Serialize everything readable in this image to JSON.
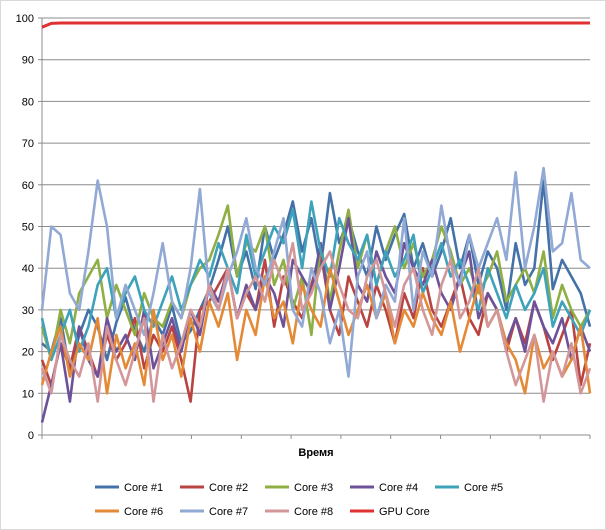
{
  "chart_data": {
    "type": "line",
    "xlabel": "Время",
    "ylabel": "",
    "ylim": [
      0,
      100
    ],
    "yticks": [
      0,
      10,
      20,
      30,
      40,
      50,
      60,
      70,
      80,
      90,
      100
    ],
    "grid": true,
    "legend_position": "bottom",
    "x": [
      1,
      2,
      3,
      4,
      5,
      6,
      7,
      8,
      9,
      10,
      11,
      12,
      13,
      14,
      15,
      16,
      17,
      18,
      19,
      20,
      21,
      22,
      23,
      24,
      25,
      26,
      27,
      28,
      29,
      30,
      31,
      32,
      33,
      34,
      35,
      36,
      37,
      38,
      39,
      40,
      41,
      42,
      43,
      44,
      45,
      46,
      47,
      48,
      49,
      50,
      51,
      52,
      53,
      54,
      55,
      56,
      57,
      58,
      59,
      60
    ],
    "series": [
      {
        "name": "Core #1",
        "color": "#4472a8",
        "values": [
          22,
          20,
          28,
          15,
          24,
          30,
          26,
          18,
          27,
          33,
          25,
          20,
          28,
          24,
          31,
          22,
          25,
          30,
          35,
          42,
          50,
          38,
          44,
          35,
          50,
          42,
          48,
          56,
          44,
          52,
          40,
          58,
          46,
          52,
          44,
          38,
          50,
          42,
          48,
          53,
          40,
          46,
          38,
          44,
          52,
          40,
          48,
          36,
          44,
          40,
          30,
          46,
          36,
          40,
          61,
          35,
          42,
          38,
          34,
          26
        ]
      },
      {
        "name": "Core #2",
        "color": "#b84341",
        "values": [
          18,
          12,
          22,
          16,
          26,
          20,
          14,
          24,
          18,
          22,
          28,
          16,
          24,
          20,
          26,
          18,
          8,
          30,
          32,
          36,
          40,
          28,
          34,
          30,
          42,
          26,
          38,
          32,
          28,
          36,
          44,
          30,
          24,
          38,
          32,
          26,
          36,
          30,
          22,
          34,
          28,
          40,
          30,
          26,
          32,
          38,
          28,
          24,
          34,
          30,
          20,
          28,
          22,
          32,
          26,
          18,
          24,
          30,
          12,
          22
        ]
      },
      {
        "name": "Core #3",
        "color": "#8faf45",
        "values": [
          26,
          18,
          30,
          22,
          34,
          38,
          42,
          28,
          36,
          30,
          24,
          34,
          28,
          26,
          32,
          28,
          36,
          40,
          42,
          48,
          55,
          38,
          46,
          44,
          50,
          36,
          42,
          30,
          38,
          24,
          46,
          32,
          44,
          54,
          40,
          48,
          36,
          44,
          50,
          40,
          46,
          38,
          42,
          50,
          44,
          36,
          40,
          34,
          38,
          44,
          32,
          36,
          40,
          34,
          44,
          28,
          36,
          30,
          26,
          30
        ]
      },
      {
        "name": "Core #4",
        "color": "#6e5299",
        "values": [
          3,
          12,
          22,
          8,
          26,
          18,
          14,
          28,
          20,
          24,
          18,
          30,
          16,
          22,
          28,
          20,
          30,
          24,
          36,
          32,
          40,
          28,
          36,
          30,
          38,
          34,
          26,
          42,
          38,
          34,
          46,
          30,
          40,
          52,
          36,
          32,
          44,
          38,
          34,
          46,
          40,
          36,
          42,
          34,
          30,
          38,
          44,
          28,
          34,
          30,
          22,
          28,
          20,
          32,
          26,
          22,
          28,
          18,
          26,
          20
        ]
      },
      {
        "name": "Core #5",
        "color": "#3ea2bb",
        "values": [
          28,
          18,
          24,
          30,
          20,
          26,
          36,
          40,
          28,
          34,
          38,
          30,
          26,
          32,
          38,
          30,
          36,
          42,
          38,
          46,
          40,
          34,
          48,
          38,
          44,
          50,
          46,
          54,
          40,
          56,
          44,
          38,
          52,
          46,
          42,
          48,
          36,
          44,
          38,
          42,
          48,
          34,
          40,
          46,
          38,
          42,
          36,
          30,
          40,
          34,
          28,
          36,
          30,
          34,
          40,
          26,
          32,
          28,
          24,
          30
        ]
      },
      {
        "name": "Core #6",
        "color": "#e48a37",
        "values": [
          12,
          20,
          26,
          14,
          22,
          18,
          28,
          10,
          24,
          16,
          22,
          12,
          30,
          18,
          24,
          14,
          28,
          20,
          32,
          26,
          34,
          18,
          30,
          24,
          38,
          28,
          32,
          22,
          36,
          30,
          26,
          40,
          32,
          24,
          30,
          36,
          28,
          34,
          22,
          30,
          26,
          34,
          28,
          24,
          32,
          20,
          28,
          36,
          26,
          30,
          22,
          18,
          10,
          24,
          16,
          20,
          14,
          18,
          26,
          10
        ]
      },
      {
        "name": "Core #7",
        "color": "#91a9d4",
        "values": [
          30,
          50,
          48,
          34,
          30,
          44,
          61,
          50,
          28,
          36,
          30,
          24,
          34,
          46,
          32,
          28,
          40,
          59,
          34,
          30,
          38,
          44,
          52,
          40,
          36,
          44,
          52,
          30,
          26,
          40,
          34,
          22,
          30,
          14,
          38,
          44,
          28,
          36,
          32,
          52,
          30,
          44,
          38,
          55,
          42,
          36,
          48,
          40,
          46,
          52,
          42,
          63,
          40,
          50,
          64,
          44,
          46,
          58,
          42,
          40
        ]
      },
      {
        "name": "Core #8",
        "color": "#d3979a",
        "values": [
          16,
          10,
          24,
          18,
          14,
          22,
          8,
          26,
          18,
          12,
          20,
          28,
          8,
          24,
          16,
          22,
          30,
          26,
          36,
          30,
          40,
          28,
          34,
          38,
          32,
          42,
          36,
          46,
          30,
          34,
          40,
          44,
          36,
          30,
          28,
          38,
          42,
          34,
          26,
          36,
          40,
          30,
          24,
          36,
          42,
          28,
          32,
          40,
          26,
          30,
          20,
          12,
          18,
          24,
          8,
          20,
          14,
          22,
          10,
          16
        ]
      },
      {
        "name": "GPU Core",
        "color": "#e03232",
        "values": [
          97.8,
          98.7,
          98.8,
          98.8,
          98.8,
          98.8,
          98.8,
          98.8,
          98.8,
          98.8,
          98.8,
          98.8,
          98.8,
          98.8,
          98.8,
          98.8,
          98.8,
          98.8,
          98.8,
          98.8,
          98.8,
          98.8,
          98.8,
          98.8,
          98.8,
          98.8,
          98.8,
          98.8,
          98.8,
          98.8,
          98.8,
          98.8,
          98.8,
          98.8,
          98.8,
          98.8,
          98.8,
          98.8,
          98.8,
          98.8,
          98.8,
          98.8,
          98.8,
          98.8,
          98.8,
          98.8,
          98.8,
          98.8,
          98.8,
          98.8,
          98.8,
          98.8,
          98.8,
          98.8,
          98.8,
          98.8,
          98.8,
          98.8,
          98.8,
          98.8
        ]
      }
    ]
  }
}
